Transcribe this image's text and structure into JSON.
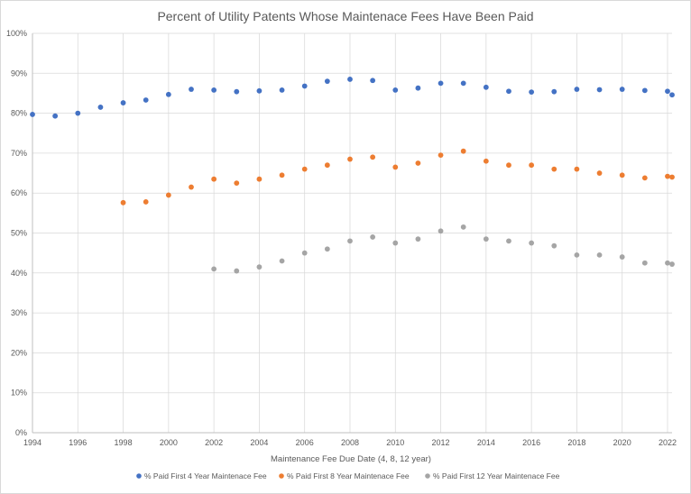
{
  "chart_data": {
    "type": "scatter",
    "title": "Percent of Utility Patents Whose Maintenace Fees Have Been Paid",
    "xlabel": "Maintenance Fee Due Date (4, 8, 12 year)",
    "ylabel": "",
    "xlim": [
      1994,
      2022.2
    ],
    "ylim": [
      0,
      100
    ],
    "x_ticks": [
      1994,
      1996,
      1998,
      2000,
      2002,
      2004,
      2006,
      2008,
      2010,
      2012,
      2014,
      2016,
      2018,
      2020,
      2022
    ],
    "y_ticks": [
      0,
      10,
      20,
      30,
      40,
      50,
      60,
      70,
      80,
      90,
      100
    ],
    "y_tick_suffix": "%",
    "grid": true,
    "legend_position": "bottom",
    "series": [
      {
        "name": "% Paid First 4 Year Maintenace Fee",
        "color": "#4472c4",
        "points": [
          [
            1994,
            79.7
          ],
          [
            1995,
            79.3
          ],
          [
            1996,
            80.0
          ],
          [
            1997,
            81.5
          ],
          [
            1998,
            82.6
          ],
          [
            1999,
            83.3
          ],
          [
            2000,
            84.7
          ],
          [
            2001,
            86.0
          ],
          [
            2002,
            85.8
          ],
          [
            2003,
            85.4
          ],
          [
            2004,
            85.6
          ],
          [
            2005,
            85.8
          ],
          [
            2006,
            86.8
          ],
          [
            2007,
            88.0
          ],
          [
            2008,
            88.5
          ],
          [
            2009,
            88.2
          ],
          [
            2010,
            85.8
          ],
          [
            2011,
            86.3
          ],
          [
            2012,
            87.5
          ],
          [
            2013,
            87.5
          ],
          [
            2014,
            86.5
          ],
          [
            2015,
            85.5
          ],
          [
            2016,
            85.3
          ],
          [
            2017,
            85.4
          ],
          [
            2018,
            86.0
          ],
          [
            2019,
            85.9
          ],
          [
            2020,
            86.0
          ],
          [
            2021,
            85.7
          ],
          [
            2022,
            85.5
          ],
          [
            2022.2,
            84.6
          ]
        ]
      },
      {
        "name": "% Paid First 8 Year Maintenace Fee",
        "color": "#ed7d31",
        "points": [
          [
            1998,
            57.6
          ],
          [
            1999,
            57.8
          ],
          [
            2000,
            59.5
          ],
          [
            2001,
            61.5
          ],
          [
            2002,
            63.5
          ],
          [
            2003,
            62.5
          ],
          [
            2004,
            63.5
          ],
          [
            2005,
            64.5
          ],
          [
            2006,
            66.0
          ],
          [
            2007,
            67.0
          ],
          [
            2008,
            68.5
          ],
          [
            2009,
            69.0
          ],
          [
            2010,
            66.5
          ],
          [
            2011,
            67.5
          ],
          [
            2012,
            69.5
          ],
          [
            2013,
            70.5
          ],
          [
            2014,
            68.0
          ],
          [
            2015,
            67.0
          ],
          [
            2016,
            67.0
          ],
          [
            2017,
            66.0
          ],
          [
            2018,
            66.0
          ],
          [
            2019,
            65.0
          ],
          [
            2020,
            64.5
          ],
          [
            2021,
            63.8
          ],
          [
            2022,
            64.2
          ],
          [
            2022.2,
            64.0
          ]
        ]
      },
      {
        "name": "% Paid First 12 Year Maintenace Fee",
        "color": "#a5a5a5",
        "points": [
          [
            2002,
            41.0
          ],
          [
            2003,
            40.5
          ],
          [
            2004,
            41.5
          ],
          [
            2005,
            43.0
          ],
          [
            2006,
            45.0
          ],
          [
            2007,
            46.0
          ],
          [
            2008,
            48.0
          ],
          [
            2009,
            49.0
          ],
          [
            2010,
            47.5
          ],
          [
            2011,
            48.5
          ],
          [
            2012,
            50.5
          ],
          [
            2013,
            51.5
          ],
          [
            2014,
            48.5
          ],
          [
            2015,
            48.0
          ],
          [
            2016,
            47.5
          ],
          [
            2017,
            46.8
          ],
          [
            2018,
            44.5
          ],
          [
            2019,
            44.5
          ],
          [
            2020,
            44.0
          ],
          [
            2021,
            42.5
          ],
          [
            2022,
            42.5
          ],
          [
            2022.2,
            42.2
          ]
        ]
      }
    ]
  }
}
